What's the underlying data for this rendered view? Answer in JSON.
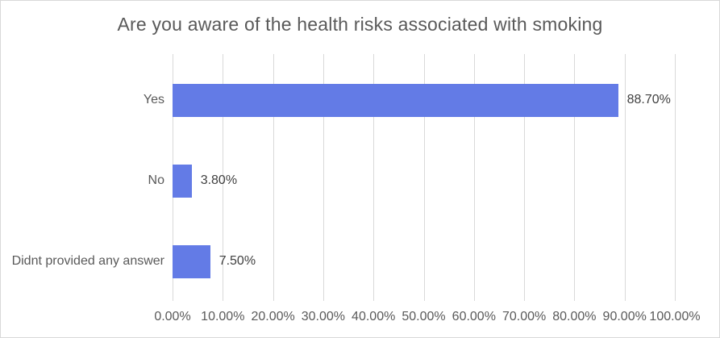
{
  "chart_data": {
    "type": "bar",
    "orientation": "horizontal",
    "title": "Are you aware of the health risks associated with smoking",
    "categories": [
      "Yes",
      "No",
      "Didnt provided any answer"
    ],
    "values": [
      88.7,
      3.8,
      7.5
    ],
    "value_labels": [
      "88.70%",
      "3.80%",
      "7.50%"
    ],
    "x_ticks": [
      "0.00%",
      "10.00%",
      "20.00%",
      "30.00%",
      "40.00%",
      "50.00%",
      "60.00%",
      "70.00%",
      "80.00%",
      "90.00%",
      "100.00%"
    ],
    "xlim": [
      0,
      100
    ],
    "grid": "vertical-only",
    "legend": "none",
    "colors": {
      "bar": "#637BE6",
      "gridline": "#D9D9D9",
      "canvas_border": "#D9D9D9",
      "background": "#FFFFFF",
      "title_text": "#595959",
      "axis_text": "#595959",
      "data_label_text": "#404040"
    }
  }
}
